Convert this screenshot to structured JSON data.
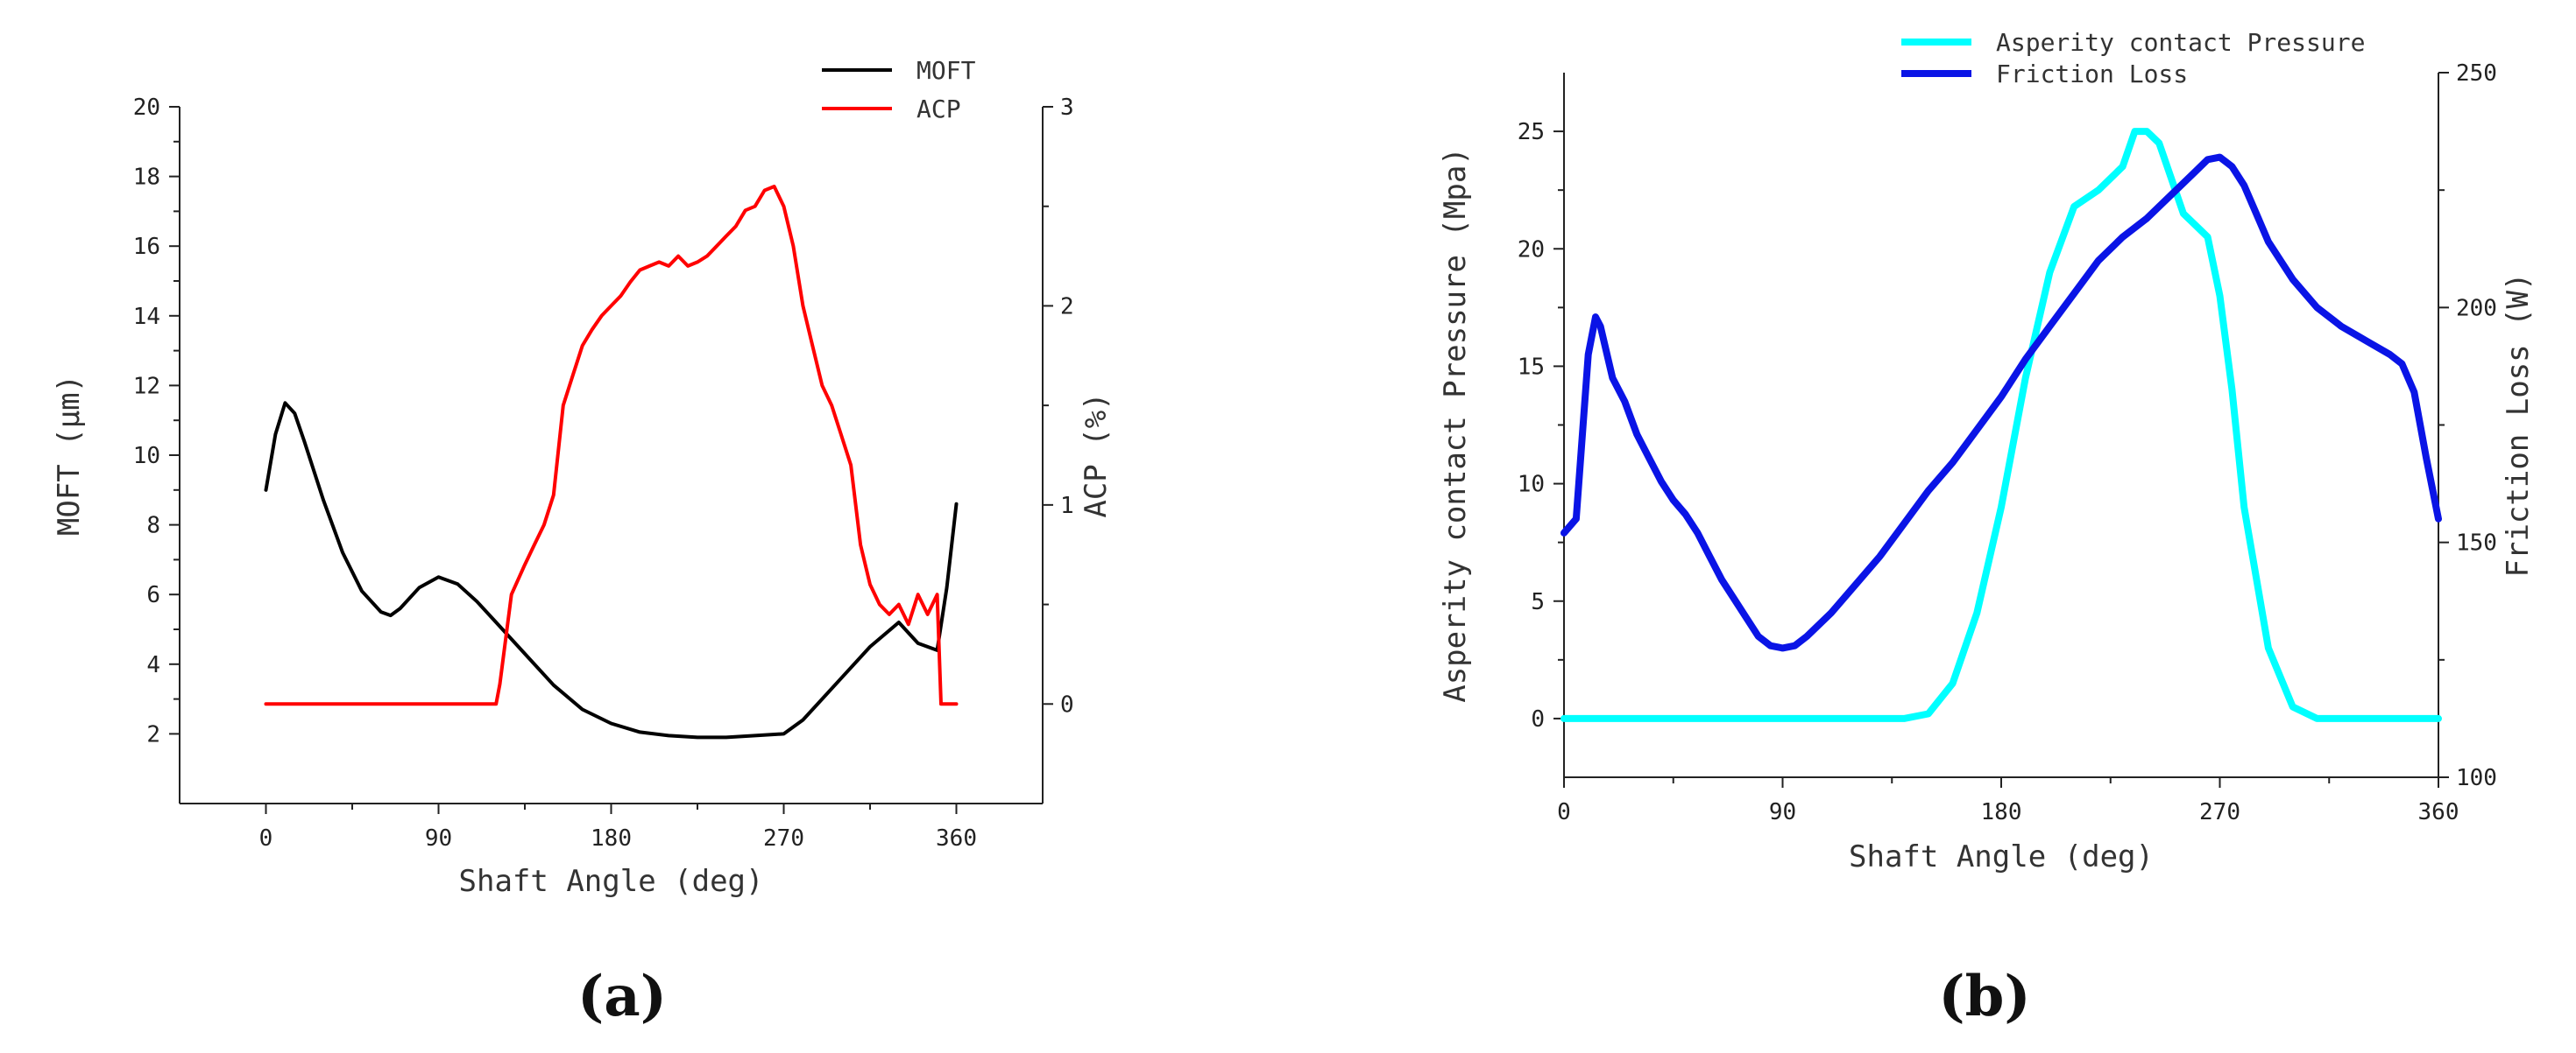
{
  "chart_data": [
    {
      "panel_label": "(a)",
      "type": "line",
      "xlabel": "Shaft Angle (deg)",
      "ylabel": "MOFT (μm)",
      "y2label": "ACP (%)",
      "xlim": [
        -45,
        405
      ],
      "xticks": [
        0,
        90,
        180,
        270,
        360
      ],
      "ylim": [
        0,
        20
      ],
      "yticks": [
        2,
        4,
        6,
        8,
        10,
        12,
        14,
        16,
        18,
        20
      ],
      "y2lim": [
        -0.5,
        3
      ],
      "y2ticks": [
        0,
        1,
        2,
        3
      ],
      "legend_position": "top-right",
      "series": [
        {
          "name": "MOFT",
          "axis": "left",
          "color": "#000000",
          "x": [
            0,
            5,
            10,
            15,
            20,
            30,
            40,
            50,
            60,
            65,
            70,
            80,
            90,
            100,
            110,
            120,
            135,
            150,
            165,
            180,
            195,
            210,
            225,
            240,
            255,
            270,
            280,
            290,
            300,
            315,
            330,
            340,
            350,
            355,
            360
          ],
          "y": [
            9.0,
            10.6,
            11.5,
            11.2,
            10.4,
            8.7,
            7.2,
            6.1,
            5.5,
            5.4,
            5.6,
            6.2,
            6.5,
            6.3,
            5.8,
            5.2,
            4.3,
            3.4,
            2.7,
            2.3,
            2.05,
            1.95,
            1.9,
            1.9,
            1.95,
            2.0,
            2.4,
            3.0,
            3.6,
            4.5,
            5.2,
            4.6,
            4.4,
            6.2,
            8.6
          ]
        },
        {
          "name": "ACP",
          "axis": "right",
          "color": "#ff0000",
          "x": [
            0,
            120,
            122,
            128,
            135,
            140,
            145,
            150,
            155,
            160,
            165,
            170,
            175,
            180,
            185,
            190,
            195,
            200,
            205,
            210,
            215,
            220,
            225,
            230,
            235,
            240,
            245,
            250,
            255,
            260,
            265,
            270,
            275,
            280,
            285,
            290,
            295,
            300,
            305,
            310,
            315,
            320,
            325,
            330,
            335,
            340,
            345,
            350,
            352,
            355,
            360
          ],
          "y": [
            0,
            0,
            0.1,
            0.55,
            0.7,
            0.8,
            0.9,
            1.05,
            1.5,
            1.65,
            1.8,
            1.88,
            1.95,
            2.0,
            2.05,
            2.12,
            2.18,
            2.2,
            2.22,
            2.2,
            2.25,
            2.2,
            2.22,
            2.25,
            2.3,
            2.35,
            2.4,
            2.48,
            2.5,
            2.58,
            2.6,
            2.5,
            2.3,
            2.0,
            1.8,
            1.6,
            1.5,
            1.35,
            1.2,
            0.8,
            0.6,
            0.5,
            0.45,
            0.5,
            0.4,
            0.55,
            0.45,
            0.55,
            0.0,
            0.0,
            0.0
          ]
        }
      ]
    },
    {
      "panel_label": "(b)",
      "type": "line",
      "xlabel": "Shaft Angle (deg)",
      "ylabel": "Asperity contact Pressure (Mpa)",
      "y2label": "Friction Loss (W)",
      "xlim": [
        0,
        360
      ],
      "xticks": [
        0,
        90,
        180,
        270,
        360
      ],
      "ylim": [
        -2.5,
        27.5
      ],
      "yticks": [
        0,
        5,
        10,
        15,
        20,
        25
      ],
      "y2lim": [
        100,
        250
      ],
      "y2ticks": [
        100,
        150,
        200,
        250
      ],
      "legend_position": "top-right",
      "series": [
        {
          "name": "Asperity contact Pressure",
          "axis": "left",
          "color": "#00ffff",
          "x": [
            0,
            140,
            150,
            160,
            170,
            180,
            190,
            200,
            210,
            220,
            230,
            235,
            240,
            245,
            250,
            255,
            260,
            265,
            270,
            275,
            280,
            290,
            300,
            310,
            320,
            340,
            360
          ],
          "y": [
            0,
            0,
            0.2,
            1.5,
            4.5,
            9.0,
            14.5,
            19.0,
            21.8,
            22.5,
            23.5,
            25.0,
            25.0,
            24.5,
            23.0,
            21.5,
            21.0,
            20.5,
            18.0,
            14.0,
            9.0,
            3.0,
            0.5,
            0,
            0,
            0,
            0
          ]
        },
        {
          "name": "Friction Loss",
          "axis": "right",
          "color": "#0a14e6",
          "x": [
            0,
            5,
            10,
            13,
            15,
            20,
            25,
            30,
            35,
            40,
            45,
            50,
            55,
            60,
            65,
            70,
            75,
            80,
            85,
            90,
            95,
            100,
            110,
            120,
            130,
            140,
            150,
            160,
            170,
            180,
            190,
            200,
            210,
            220,
            230,
            240,
            250,
            260,
            265,
            270,
            275,
            280,
            285,
            290,
            300,
            310,
            320,
            330,
            340,
            345,
            350,
            355,
            360
          ],
          "y": [
            152,
            155,
            190,
            198,
            196,
            185,
            180,
            173,
            168,
            163,
            159,
            156,
            152,
            147,
            142,
            138,
            134,
            130,
            128,
            127.5,
            128,
            130,
            135,
            141,
            147,
            154,
            161,
            167,
            174,
            181,
            189,
            196,
            203,
            210,
            215,
            219,
            224,
            229,
            231.5,
            232,
            230,
            226,
            220,
            214,
            206,
            200,
            196,
            193,
            190,
            188,
            182,
            168,
            155
          ]
        }
      ]
    }
  ]
}
